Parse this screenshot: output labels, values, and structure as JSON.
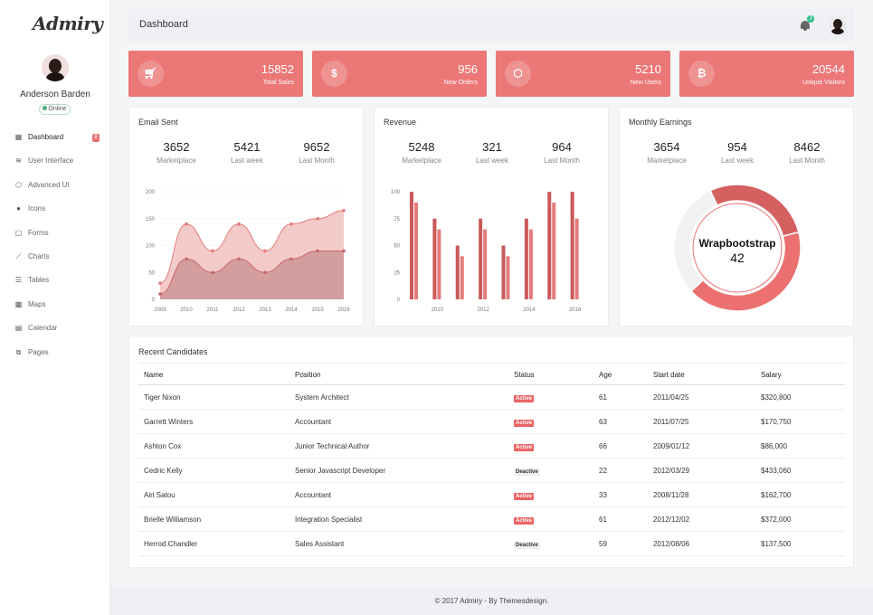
{
  "app": {
    "logo": "Admiry",
    "page_title": "Dashboard"
  },
  "colors": {
    "accent": "#ec7777",
    "success": "#2ec28b"
  },
  "user": {
    "name": "Anderson Barden",
    "status": "Online"
  },
  "header": {
    "notification_count": "3"
  },
  "sidebar": {
    "items": [
      {
        "label": "Dashboard",
        "icon": "dashboard-icon",
        "badge": "8"
      },
      {
        "label": "User Interface",
        "icon": "layers-icon"
      },
      {
        "label": "Advanced UI",
        "icon": "cube-icon"
      },
      {
        "label": "Icons",
        "icon": "circle-icon"
      },
      {
        "label": "Forms",
        "icon": "clipboard-icon"
      },
      {
        "label": "Charts",
        "icon": "line-chart-icon"
      },
      {
        "label": "Tables",
        "icon": "list-icon"
      },
      {
        "label": "Maps",
        "icon": "map-icon"
      },
      {
        "label": "Calendar",
        "icon": "calendar-icon"
      },
      {
        "label": "Pages",
        "icon": "pages-icon"
      }
    ]
  },
  "stats": [
    {
      "value": "15852",
      "label": "Total Sales",
      "icon": "cart-icon"
    },
    {
      "value": "956",
      "label": "New Orders",
      "icon": "dollar-icon"
    },
    {
      "value": "5210",
      "label": "New Users",
      "icon": "box-icon"
    },
    {
      "value": "20544",
      "label": "Unique Visitors",
      "icon": "bitcoin-icon"
    }
  ],
  "panels": {
    "email": {
      "title": "Email Sent",
      "stats": [
        {
          "v": "3652",
          "l": "Marketplace"
        },
        {
          "v": "5421",
          "l": "Last week"
        },
        {
          "v": "9652",
          "l": "Last Month"
        }
      ]
    },
    "revenue": {
      "title": "Revenue",
      "stats": [
        {
          "v": "5248",
          "l": "Marketplace"
        },
        {
          "v": "321",
          "l": "Last week"
        },
        {
          "v": "964",
          "l": "Last Month"
        }
      ]
    },
    "earnings": {
      "title": "Monthly Earnings",
      "stats": [
        {
          "v": "3654",
          "l": "Marketplace"
        },
        {
          "v": "954",
          "l": "Last week"
        },
        {
          "v": "8462",
          "l": "Last Month"
        }
      ]
    }
  },
  "chart_data": [
    {
      "type": "area",
      "x": [
        "2009",
        "2010",
        "2011",
        "2012",
        "2013",
        "2014",
        "2015",
        "2016"
      ],
      "ylim": [
        0,
        200
      ],
      "yticks": [
        "0",
        "50",
        "100",
        "150",
        "200"
      ],
      "series": [
        {
          "values": [
            30,
            140,
            90,
            140,
            90,
            140,
            150,
            165
          ]
        },
        {
          "values": [
            10,
            75,
            50,
            75,
            50,
            75,
            90,
            90
          ]
        }
      ]
    },
    {
      "type": "bar",
      "xticks": [
        "2010",
        "2012",
        "2014",
        "2016"
      ],
      "ylim": [
        0,
        100
      ],
      "yticks": [
        "0",
        "25",
        "50",
        "75",
        "100"
      ],
      "categories": [
        "2009",
        "2010",
        "2011",
        "2012",
        "2013",
        "2014",
        "2015",
        "2016"
      ],
      "series": [
        {
          "values": [
            100,
            75,
            50,
            75,
            50,
            75,
            100,
            100
          ]
        },
        {
          "values": [
            90,
            65,
            40,
            65,
            40,
            65,
            90,
            75
          ]
        }
      ]
    },
    {
      "type": "pie",
      "label": "Wrapbootstrap",
      "value": "42",
      "slices": [
        42,
        30,
        28
      ]
    }
  ],
  "table": {
    "title": "Recent Candidates",
    "headers": [
      "Name",
      "Position",
      "Status",
      "Age",
      "Start date",
      "Salary"
    ],
    "rows": [
      {
        "name": "Tiger Nixon",
        "position": "System Architect",
        "status": "Active",
        "age": "61",
        "start": "2011/04/25",
        "salary": "$320,800"
      },
      {
        "name": "Garrett Winters",
        "position": "Accountant",
        "status": "Active",
        "age": "63",
        "start": "2011/07/25",
        "salary": "$170,750"
      },
      {
        "name": "Ashton Cox",
        "position": "Junior Technical Author",
        "status": "Active",
        "age": "66",
        "start": "2009/01/12",
        "salary": "$86,000"
      },
      {
        "name": "Cedric Kelly",
        "position": "Senior Javascript Developer",
        "status": "Deactive",
        "age": "22",
        "start": "2012/03/29",
        "salary": "$433,060"
      },
      {
        "name": "Airi Satou",
        "position": "Accountant",
        "status": "Active",
        "age": "33",
        "start": "2008/11/28",
        "salary": "$162,700"
      },
      {
        "name": "Brielle Williamson",
        "position": "Integration Specialist",
        "status": "Active",
        "age": "61",
        "start": "2012/12/02",
        "salary": "$372,000"
      },
      {
        "name": "Herrod Chandler",
        "position": "Sales Assistant",
        "status": "Deactive",
        "age": "59",
        "start": "2012/08/06",
        "salary": "$137,500"
      }
    ]
  },
  "footer": {
    "text": "© 2017 Admiry - By Themesdesign."
  }
}
